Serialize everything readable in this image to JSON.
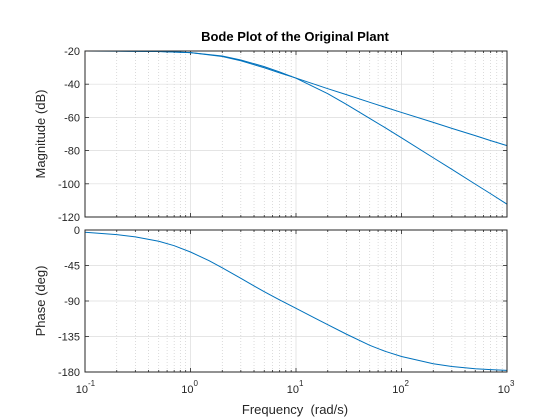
{
  "chart_data": {
    "type": "line",
    "title": "Bode Plot of the Original Plant",
    "xlabel": "Frequency  (rad/s)",
    "xscale": "log",
    "xlim": [
      0.1,
      1000
    ],
    "x_ticks": [
      {
        "base": "10",
        "exp": "-1",
        "value": 0.1
      },
      {
        "base": "10",
        "exp": "0",
        "value": 1
      },
      {
        "base": "10",
        "exp": "1",
        "value": 10
      },
      {
        "base": "10",
        "exp": "2",
        "value": 100
      },
      {
        "base": "10",
        "exp": "3",
        "value": 1000
      }
    ],
    "grid": true,
    "line_color": "#0072bd",
    "panels": [
      {
        "name": "magnitude",
        "ylabel": "Magnitude (dB)",
        "ylim": [
          -120,
          -20
        ],
        "yticks": [
          -20,
          -40,
          -60,
          -80,
          -100,
          -120
        ],
        "series": [
          {
            "x": [
              0.1,
              0.2,
              0.5,
              1,
              2,
              3,
              5,
              7,
              10,
              20,
              30,
              50,
              70,
              100,
              200,
              300,
              500,
              700,
              1000
            ],
            "y": [
              -20.0,
              -20.1,
              -20.3,
              -21.0,
              -23.3,
              -25.9,
              -30.1,
              -33.2,
              -36.3,
              -42.7,
              -46.3,
              -50.9,
              -53.9,
              -57.0,
              -63.0,
              -66.6,
              -71.0,
              -74.0,
              -77.0
            ]
          },
          {
            "x": [
              0.1,
              0.2,
              0.5,
              1,
              2,
              3,
              5,
              7,
              10,
              20,
              30,
              50,
              70,
              100,
              200,
              300,
              500,
              700,
              1000
            ],
            "y": [
              -20.0,
              -20.1,
              -20.3,
              -21.0,
              -23.0,
              -25.4,
              -29.4,
              -32.6,
              -36.4,
              -45.7,
              -52.1,
              -60.6,
              -66.2,
              -72.3,
              -84.3,
              -91.3,
              -100.2,
              -106.0,
              -112.3
            ]
          }
        ]
      },
      {
        "name": "phase",
        "ylabel": "Phase (deg)",
        "ylim": [
          -180,
          0
        ],
        "yticks": [
          0,
          -45,
          -90,
          -135,
          -180
        ],
        "series": [
          {
            "x": [
              0.1,
              0.2,
              0.3,
              0.5,
              0.7,
              1,
              1.5,
              2,
              3,
              4,
              5,
              7,
              10,
              15,
              20,
              30,
              50,
              70,
              100,
              200,
              300,
              500,
              700,
              1000
            ],
            "y": [
              -2.9,
              -5.8,
              -8.7,
              -14.3,
              -19.9,
              -27.9,
              -38.9,
              -48.0,
              -61.3,
              -70.9,
              -78.2,
              -88.7,
              -99.3,
              -111.5,
              -120.0,
              -132.0,
              -146.2,
              -153.8,
              -160.3,
              -169.5,
              -173.0,
              -175.8,
              -177.0,
              -177.9
            ]
          }
        ]
      }
    ]
  }
}
